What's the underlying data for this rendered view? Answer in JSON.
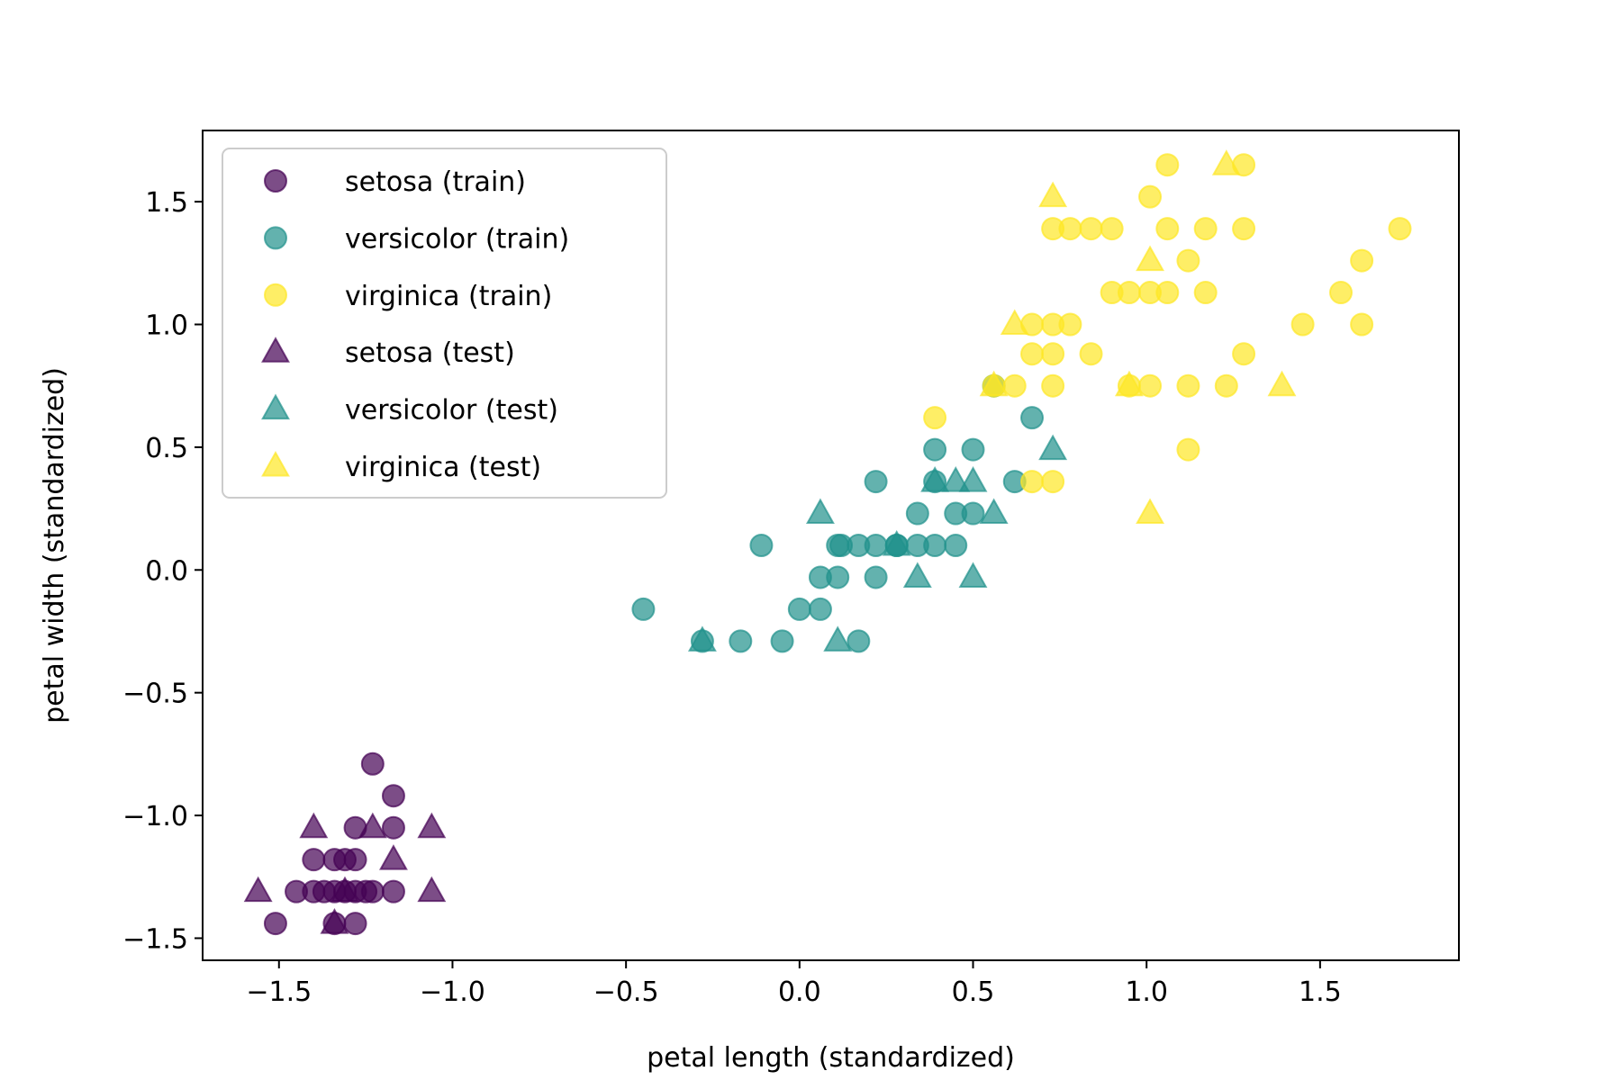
{
  "chart_data": {
    "type": "scatter",
    "title": "",
    "xlabel": "petal length (standardized)",
    "ylabel": "petal width (standardized)",
    "xlim": [
      -1.72,
      1.9
    ],
    "ylim": [
      -1.59,
      1.79
    ],
    "xticks": [
      -1.5,
      -1.0,
      -0.5,
      0.0,
      0.5,
      1.0,
      1.5
    ],
    "xtick_labels": [
      "−1.5",
      "−1.0",
      "−0.5",
      "0.0",
      "0.5",
      "1.0",
      "1.5"
    ],
    "yticks": [
      -1.5,
      -1.0,
      -0.5,
      0.0,
      0.5,
      1.0,
      1.5
    ],
    "ytick_labels": [
      "−1.5",
      "−1.0",
      "−0.5",
      "0.0",
      "0.5",
      "1.0",
      "1.5"
    ],
    "grid": false,
    "legend_position": "top-left",
    "marker_alpha": 0.7,
    "series": [
      {
        "name": "setosa (train)",
        "marker": "circle",
        "color": "#440154",
        "points": [
          [
            -1.51,
            -1.44
          ],
          [
            -1.45,
            -1.31
          ],
          [
            -1.4,
            -1.31
          ],
          [
            -1.4,
            -1.18
          ],
          [
            -1.34,
            -1.31
          ],
          [
            -1.34,
            -1.18
          ],
          [
            -1.34,
            -1.44
          ],
          [
            -1.28,
            -1.31
          ],
          [
            -1.28,
            -1.18
          ],
          [
            -1.28,
            -1.05
          ],
          [
            -1.28,
            -1.44
          ],
          [
            -1.23,
            -1.31
          ],
          [
            -1.23,
            -0.79
          ],
          [
            -1.17,
            -0.92
          ],
          [
            -1.17,
            -1.05
          ],
          [
            -1.17,
            -1.31
          ],
          [
            -1.31,
            -1.31
          ],
          [
            -1.37,
            -1.31
          ],
          [
            -1.25,
            -1.31
          ],
          [
            -1.31,
            -1.18
          ]
        ]
      },
      {
        "name": "versicolor (train)",
        "marker": "circle",
        "color": "#21918c",
        "points": [
          [
            -0.45,
            -0.16
          ],
          [
            -0.28,
            -0.29
          ],
          [
            -0.17,
            -0.29
          ],
          [
            -0.11,
            0.1
          ],
          [
            -0.05,
            -0.29
          ],
          [
            0.0,
            -0.16
          ],
          [
            0.06,
            -0.03
          ],
          [
            0.06,
            -0.16
          ],
          [
            0.11,
            -0.03
          ],
          [
            0.11,
            0.1
          ],
          [
            0.17,
            0.1
          ],
          [
            0.17,
            -0.29
          ],
          [
            0.22,
            0.1
          ],
          [
            0.22,
            -0.03
          ],
          [
            0.22,
            0.36
          ],
          [
            0.28,
            0.1
          ],
          [
            0.34,
            0.23
          ],
          [
            0.34,
            0.1
          ],
          [
            0.39,
            0.1
          ],
          [
            0.39,
            0.49
          ],
          [
            0.45,
            0.23
          ],
          [
            0.45,
            0.1
          ],
          [
            0.5,
            0.49
          ],
          [
            0.5,
            0.23
          ],
          [
            0.56,
            0.75
          ],
          [
            0.62,
            0.36
          ],
          [
            0.67,
            0.62
          ],
          [
            0.39,
            0.36
          ],
          [
            0.12,
            0.1
          ],
          [
            0.28,
            0.1
          ]
        ]
      },
      {
        "name": "virginica (train)",
        "marker": "circle",
        "color": "#fde725",
        "points": [
          [
            0.39,
            0.62
          ],
          [
            0.56,
            0.75
          ],
          [
            0.62,
            0.75
          ],
          [
            0.67,
            1.0
          ],
          [
            0.67,
            0.88
          ],
          [
            0.67,
            0.36
          ],
          [
            0.73,
            1.0
          ],
          [
            0.73,
            0.88
          ],
          [
            0.73,
            0.75
          ],
          [
            0.73,
            1.39
          ],
          [
            0.73,
            0.36
          ],
          [
            0.78,
            1.39
          ],
          [
            0.78,
            1.0
          ],
          [
            0.84,
            1.39
          ],
          [
            0.84,
            0.88
          ],
          [
            0.9,
            1.39
          ],
          [
            0.9,
            1.13
          ],
          [
            0.95,
            1.13
          ],
          [
            0.95,
            0.75
          ],
          [
            1.01,
            1.52
          ],
          [
            1.01,
            1.13
          ],
          [
            1.01,
            0.75
          ],
          [
            1.06,
            1.65
          ],
          [
            1.06,
            1.39
          ],
          [
            1.06,
            1.13
          ],
          [
            1.12,
            1.26
          ],
          [
            1.12,
            0.75
          ],
          [
            1.12,
            0.49
          ],
          [
            1.17,
            1.39
          ],
          [
            1.17,
            1.13
          ],
          [
            1.23,
            0.75
          ],
          [
            1.28,
            1.65
          ],
          [
            1.28,
            1.39
          ],
          [
            1.28,
            0.88
          ],
          [
            1.45,
            1.0
          ],
          [
            1.56,
            1.13
          ],
          [
            1.62,
            1.26
          ],
          [
            1.62,
            1.0
          ],
          [
            1.73,
            1.39
          ]
        ]
      },
      {
        "name": "setosa (test)",
        "marker": "triangle",
        "color": "#440154",
        "points": [
          [
            -1.56,
            -1.31
          ],
          [
            -1.4,
            -1.05
          ],
          [
            -1.34,
            -1.44
          ],
          [
            -1.23,
            -1.05
          ],
          [
            -1.17,
            -1.18
          ],
          [
            -1.06,
            -1.05
          ],
          [
            -1.06,
            -1.31
          ],
          [
            -1.31,
            -1.31
          ]
        ]
      },
      {
        "name": "versicolor (test)",
        "marker": "triangle",
        "color": "#21918c",
        "points": [
          [
            -0.28,
            -0.29
          ],
          [
            0.06,
            0.23
          ],
          [
            0.11,
            -0.29
          ],
          [
            0.28,
            0.1
          ],
          [
            0.34,
            -0.03
          ],
          [
            0.39,
            0.36
          ],
          [
            0.45,
            0.36
          ],
          [
            0.5,
            0.36
          ],
          [
            0.5,
            -0.03
          ],
          [
            0.56,
            0.23
          ],
          [
            0.73,
            0.49
          ]
        ]
      },
      {
        "name": "virginica (test)",
        "marker": "triangle",
        "color": "#fde725",
        "points": [
          [
            0.56,
            0.75
          ],
          [
            0.62,
            1.0
          ],
          [
            0.73,
            1.52
          ],
          [
            1.01,
            1.26
          ],
          [
            1.01,
            0.23
          ],
          [
            0.95,
            0.75
          ],
          [
            1.23,
            1.65
          ],
          [
            1.39,
            0.75
          ]
        ]
      }
    ]
  }
}
